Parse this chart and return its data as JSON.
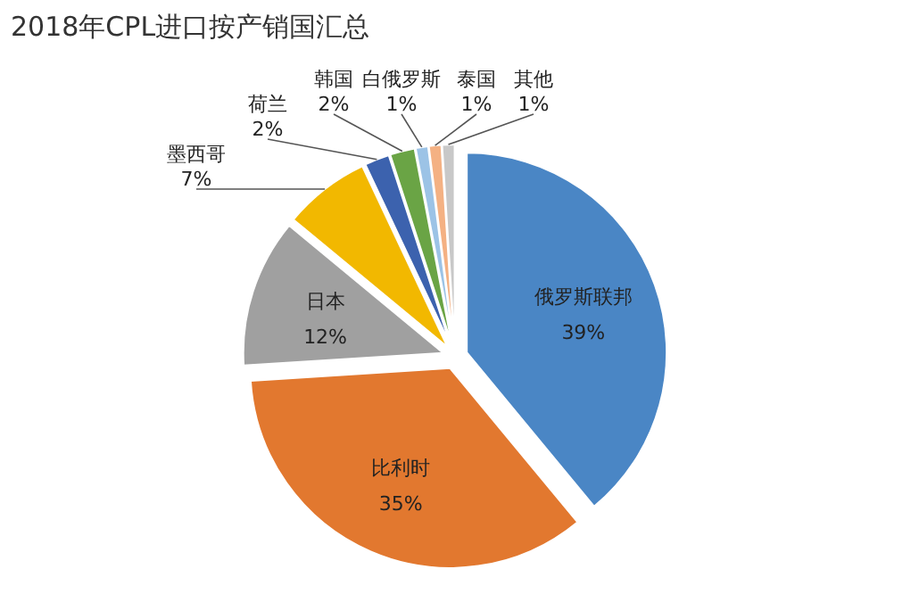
{
  "chart_data": {
    "type": "pie",
    "title": "2018年CPL进口按产销国汇总",
    "categories": [
      "俄罗斯联邦",
      "比利时",
      "日本",
      "墨西哥",
      "荷兰",
      "韩国",
      "白俄罗斯",
      "泰国",
      "其他"
    ],
    "values": [
      39,
      35,
      12,
      7,
      2,
      2,
      1,
      1,
      1
    ],
    "colors": [
      "#4a86c5",
      "#e2782f",
      "#a0a0a0",
      "#f2b800",
      "#3c62ae",
      "#6aa445",
      "#9cc3e6",
      "#f4b183",
      "#c8c8c8"
    ],
    "value_labels": [
      "39%",
      "35%",
      "12%",
      "7%",
      "2%",
      "2%",
      "1%",
      "1%",
      "1%"
    ]
  }
}
